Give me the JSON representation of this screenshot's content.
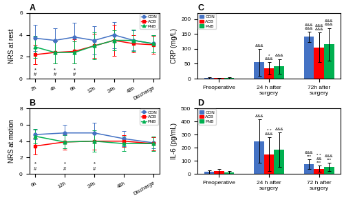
{
  "chart_data": [
    {
      "type": "line",
      "title": "A",
      "y_label": "NRS at rest",
      "categories": [
        "2h",
        "4h",
        "6h",
        "12h",
        "24h",
        "48h",
        "Discharge"
      ],
      "ylim": [
        0,
        6
      ],
      "yticks": [
        0,
        2,
        4,
        6
      ],
      "legend": "upper right",
      "series": [
        {
          "name": "CON",
          "color": "#4472C4",
          "marker": "circle",
          "values": [
            3.7,
            3.5,
            3.8,
            3.5,
            4.0,
            3.5,
            3.2
          ],
          "error": [
            1.2,
            1.1,
            1.3,
            1.3,
            1.2,
            0.9,
            0.8
          ]
        },
        {
          "name": "ACB",
          "color": "#FF0000",
          "marker": "square",
          "values": [
            2.2,
            2.4,
            2.5,
            3.0,
            3.5,
            3.2,
            3.1
          ],
          "error": [
            0.9,
            1.0,
            1.1,
            1.1,
            1.4,
            0.8,
            0.8
          ]
        },
        {
          "name": "FNB",
          "color": "#00B050",
          "marker": "triangle",
          "values": [
            2.9,
            2.4,
            2.4,
            3.0,
            3.5,
            3.5,
            3.2
          ],
          "error": [
            1.0,
            1.0,
            1.0,
            1.2,
            0.9,
            1.0,
            0.8
          ]
        }
      ],
      "annotations": [
        {
          "text": "*",
          "category": "2h",
          "y": 0.55
        },
        {
          "text": "*",
          "category": "4h",
          "y": 0.55
        },
        {
          "text": "*",
          "category": "6h",
          "y": 0.55
        },
        {
          "text": "#",
          "category": "2h",
          "y": 0.15
        },
        {
          "text": "#",
          "category": "4h",
          "y": 0.15
        },
        {
          "text": "#",
          "category": "6h",
          "y": 0.15
        }
      ]
    },
    {
      "type": "line",
      "title": "B",
      "y_label": "NRS at motion",
      "categories": [
        "6h",
        "12h",
        "24h",
        "48h",
        "Discharge"
      ],
      "ylim": [
        0,
        8
      ],
      "yticks": [
        0,
        2,
        4,
        6,
        8
      ],
      "legend": "upper right",
      "series": [
        {
          "name": "CON",
          "color": "#4472C4",
          "marker": "circle",
          "values": [
            4.8,
            5.0,
            5.0,
            4.3,
            3.8
          ],
          "error": [
            0.6,
            1.0,
            1.2,
            0.9,
            0.7
          ]
        },
        {
          "name": "ACB",
          "color": "#FF0000",
          "marker": "square",
          "values": [
            3.4,
            3.9,
            4.0,
            4.0,
            3.7
          ],
          "error": [
            1.0,
            0.9,
            1.0,
            0.7,
            0.8
          ]
        },
        {
          "name": "FNB",
          "color": "#00B050",
          "marker": "triangle",
          "values": [
            4.6,
            3.9,
            4.0,
            3.7,
            3.7
          ],
          "error": [
            0.9,
            0.8,
            1.3,
            0.9,
            0.9
          ]
        }
      ],
      "annotations": [
        {
          "text": "*",
          "category": "6h",
          "y": 0.9
        },
        {
          "text": "*",
          "category": "12h",
          "y": 0.9
        },
        {
          "text": "*",
          "category": "24h",
          "y": 0.9
        },
        {
          "text": "#",
          "category": "6h",
          "y": 0.3
        },
        {
          "text": "#",
          "category": "12h",
          "y": 0.3
        },
        {
          "text": "#",
          "category": "24h",
          "y": 0.3
        }
      ]
    },
    {
      "type": "bar",
      "title": "C",
      "y_label": "CRP (mg/L)",
      "categories": [
        "Preoperative",
        "24 h after\nsurgery",
        "72h after\nsurgery"
      ],
      "ylim": [
        0,
        220
      ],
      "yticks": [
        0,
        50,
        100,
        150,
        200
      ],
      "legend": "upper left",
      "series": [
        {
          "name": "CON",
          "color": "#4472C4",
          "values": [
            3.0,
            55.0,
            140.0
          ],
          "error": [
            2.0,
            45.0,
            18.0
          ],
          "annotations": [
            null,
            "&&&",
            "&&&\n&&&"
          ]
        },
        {
          "name": "ACB",
          "color": "#FF0000",
          "values": [
            1.5,
            35.0,
            105.0
          ],
          "error": [
            1.0,
            20.0,
            50.0
          ],
          "annotations": [
            null,
            "*\n&&&",
            "&&&\n&&&"
          ]
        },
        {
          "name": "FNB",
          "color": "#00B050",
          "values": [
            2.5,
            41.0,
            115.0
          ],
          "error": [
            1.5,
            25.0,
            55.0
          ],
          "annotations": [
            null,
            "&&&",
            "&&&\n&&&"
          ]
        }
      ]
    },
    {
      "type": "bar",
      "title": "D",
      "y_label": "IL-6 (pg/mL)",
      "categories": [
        "Preoperative",
        "24 h after\nsurgery",
        "72 h after\nsurgery"
      ],
      "ylim": [
        0,
        500
      ],
      "yticks": [
        0,
        100,
        200,
        300,
        400,
        500
      ],
      "legend": "upper left",
      "series": [
        {
          "name": "CON",
          "color": "#4472C4",
          "values": [
            15.0,
            250.0,
            75.0
          ],
          "error": [
            12.0,
            165.0,
            35.0
          ],
          "annotations": [
            null,
            "&&&",
            "&&&\n***"
          ]
        },
        {
          "name": "ACB",
          "color": "#FF0000",
          "values": [
            20.0,
            150.0,
            40.0
          ],
          "error": [
            18.0,
            130.0,
            25.0
          ],
          "annotations": [
            null,
            "* *\n&&&",
            "* *\n&&\n***"
          ]
        },
        {
          "name": "FNB",
          "color": "#00B050",
          "values": [
            12.0,
            185.0,
            55.0
          ],
          "error": [
            10.0,
            130.0,
            32.0
          ],
          "annotations": [
            null,
            "&&&",
            "&&&\n***"
          ]
        }
      ]
    }
  ]
}
